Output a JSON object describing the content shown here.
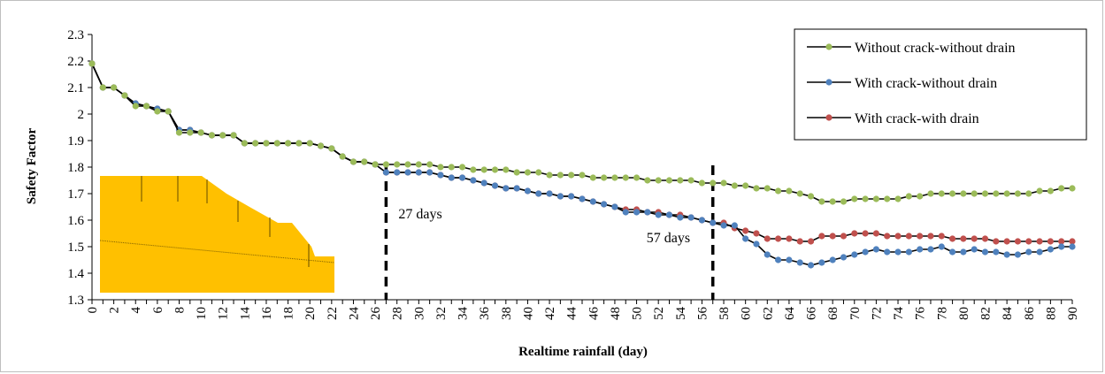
{
  "chart_data": {
    "type": "line",
    "title": "",
    "xlabel": "Realtime rainfall (day)",
    "ylabel": "Safety Factor",
    "xlim": [
      0,
      90
    ],
    "ylim": [
      1.3,
      2.3
    ],
    "y_ticks": [
      1.3,
      1.4,
      1.5,
      1.6,
      1.7,
      1.8,
      1.9,
      2,
      2.1,
      2.2,
      2.3
    ],
    "y_tick_labels": [
      "1.3",
      "1.4",
      "1.5",
      "1.6",
      "1.7",
      "1.8",
      "1.9",
      "2",
      "2.1",
      "2.2",
      "2.3"
    ],
    "x_tick_labels": [
      "0",
      "2",
      "4",
      "6",
      "8",
      "10",
      "12",
      "14",
      "16",
      "18",
      "20",
      "22",
      "24",
      "26",
      "28",
      "30",
      "32",
      "34",
      "36",
      "38",
      "40",
      "42",
      "44",
      "46",
      "48",
      "50",
      "52",
      "54",
      "56",
      "58",
      "60",
      "62",
      "64",
      "66",
      "68",
      "70",
      "72",
      "74",
      "76",
      "78",
      "80",
      "82",
      "84",
      "86",
      "88",
      "90"
    ],
    "grid": false,
    "legend_position": "top-right",
    "colors": {
      "without_crack_without_drain": "#9bbb59",
      "with_crack_without_drain": "#4f81bd",
      "with_crack_with_drain": "#c0504d",
      "line": "#000000",
      "inset_fill": "#ffc000",
      "inset_line": "#7f6000"
    },
    "series": [
      {
        "name": "Without crack-without drain",
        "key": "without_crack_without_drain",
        "values": [
          2.19,
          2.1,
          2.1,
          2.07,
          2.03,
          2.03,
          2.01,
          2.01,
          1.93,
          1.93,
          1.93,
          1.92,
          1.92,
          1.92,
          1.89,
          1.89,
          1.89,
          1.89,
          1.89,
          1.89,
          1.89,
          1.88,
          1.87,
          1.84,
          1.82,
          1.82,
          1.81,
          1.81,
          1.81,
          1.81,
          1.81,
          1.81,
          1.8,
          1.8,
          1.8,
          1.79,
          1.79,
          1.79,
          1.79,
          1.78,
          1.78,
          1.78,
          1.77,
          1.77,
          1.77,
          1.77,
          1.76,
          1.76,
          1.76,
          1.76,
          1.76,
          1.75,
          1.75,
          1.75,
          1.75,
          1.75,
          1.74,
          1.74,
          1.74,
          1.73,
          1.73,
          1.72,
          1.72,
          1.71,
          1.71,
          1.7,
          1.69,
          1.67,
          1.67,
          1.67,
          1.68,
          1.68,
          1.68,
          1.68,
          1.68,
          1.69,
          1.69,
          1.7,
          1.7,
          1.7,
          1.7,
          1.7,
          1.7,
          1.7,
          1.7,
          1.7,
          1.7,
          1.71,
          1.71,
          1.72,
          1.72
        ]
      },
      {
        "name": "With crack-without drain",
        "key": "with_crack_without_drain",
        "values": [
          2.19,
          2.1,
          2.1,
          2.07,
          2.04,
          2.03,
          2.02,
          2.01,
          1.94,
          1.94,
          1.93,
          1.92,
          1.92,
          1.92,
          1.89,
          1.89,
          1.89,
          1.89,
          1.89,
          1.89,
          1.89,
          1.88,
          1.87,
          1.84,
          1.82,
          1.82,
          1.81,
          1.78,
          1.78,
          1.78,
          1.78,
          1.78,
          1.77,
          1.76,
          1.76,
          1.75,
          1.74,
          1.73,
          1.72,
          1.72,
          1.71,
          1.7,
          1.7,
          1.69,
          1.69,
          1.68,
          1.67,
          1.66,
          1.65,
          1.63,
          1.63,
          1.63,
          1.62,
          1.62,
          1.61,
          1.61,
          1.6,
          1.59,
          1.58,
          1.58,
          1.53,
          1.51,
          1.47,
          1.45,
          1.45,
          1.44,
          1.43,
          1.44,
          1.45,
          1.46,
          1.47,
          1.48,
          1.49,
          1.48,
          1.48,
          1.48,
          1.49,
          1.49,
          1.5,
          1.48,
          1.48,
          1.49,
          1.48,
          1.48,
          1.47,
          1.47,
          1.48,
          1.48,
          1.49,
          1.5,
          1.5
        ]
      },
      {
        "name": "With crack-with drain",
        "key": "with_crack_with_drain",
        "values": [
          2.19,
          2.1,
          2.1,
          2.07,
          2.04,
          2.03,
          2.02,
          2.01,
          1.94,
          1.94,
          1.93,
          1.92,
          1.92,
          1.92,
          1.89,
          1.89,
          1.89,
          1.89,
          1.89,
          1.89,
          1.89,
          1.88,
          1.87,
          1.84,
          1.82,
          1.82,
          1.81,
          1.78,
          1.78,
          1.78,
          1.78,
          1.78,
          1.77,
          1.76,
          1.76,
          1.75,
          1.74,
          1.73,
          1.72,
          1.72,
          1.71,
          1.7,
          1.7,
          1.69,
          1.69,
          1.68,
          1.67,
          1.66,
          1.65,
          1.64,
          1.64,
          1.63,
          1.63,
          1.62,
          1.62,
          1.61,
          1.6,
          1.59,
          1.59,
          1.57,
          1.56,
          1.55,
          1.53,
          1.53,
          1.53,
          1.52,
          1.52,
          1.54,
          1.54,
          1.54,
          1.55,
          1.55,
          1.55,
          1.54,
          1.54,
          1.54,
          1.54,
          1.54,
          1.54,
          1.53,
          1.53,
          1.53,
          1.53,
          1.52,
          1.52,
          1.52,
          1.52,
          1.52,
          1.52,
          1.52,
          1.52
        ]
      }
    ],
    "annotations": [
      {
        "label": "27 days",
        "x": 27
      },
      {
        "label": "57 days",
        "x": 57
      }
    ]
  }
}
